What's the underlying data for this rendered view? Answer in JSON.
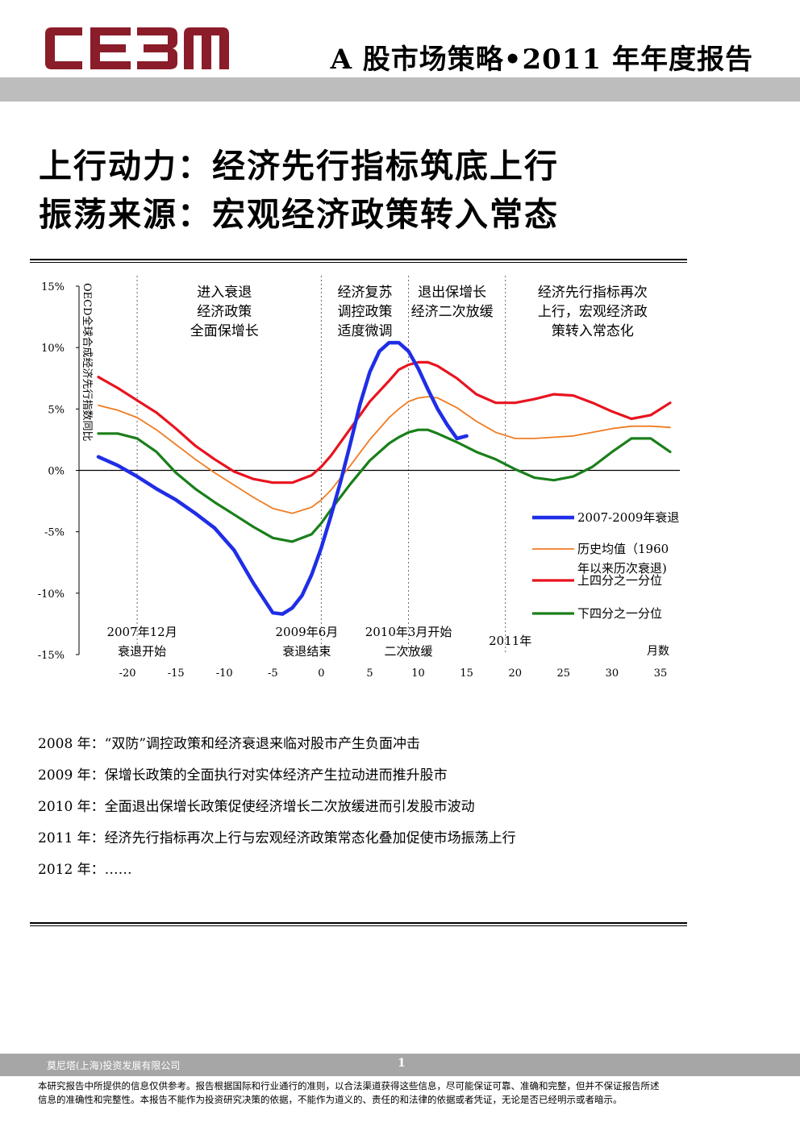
{
  "header": {
    "logo_text": "CE3M",
    "report_title": "A 股市场策略•2011 年年度报告",
    "brand_color": "#8b1c2a"
  },
  "headline": {
    "line1": "上行动力：经济先行指标筑底上行",
    "line2": "振荡来源：宏观经济政策转入常态"
  },
  "chart_data": {
    "type": "line",
    "title": "",
    "ylabel": "OECD全球合成经济先行指数同比",
    "xlabel": "月数",
    "xlim": [
      -25,
      37
    ],
    "ylim": [
      -15,
      15
    ],
    "x_ticks": [
      -20,
      -15,
      -10,
      -5,
      0,
      5,
      10,
      15,
      20,
      25,
      30,
      35
    ],
    "y_ticks": [
      {
        "value": 15,
        "label": "15%"
      },
      {
        "value": 10,
        "label": "10%"
      },
      {
        "value": 5,
        "label": "5%"
      },
      {
        "value": 0,
        "label": "0%"
      },
      {
        "value": -5,
        "label": "-5%"
      },
      {
        "value": -10,
        "label": "-10%"
      },
      {
        "value": -15,
        "label": "-15%"
      }
    ],
    "phase_lines": [
      -19,
      0,
      9,
      19
    ],
    "phase_labels": [
      {
        "x": -10,
        "lines": [
          "进入衰退",
          "经济政策",
          "全面保增长"
        ]
      },
      {
        "x": 4.5,
        "lines": [
          "经济复苏",
          "调控政策",
          "适度微调"
        ]
      },
      {
        "x": 13.5,
        "lines": [
          "退出保增长",
          "经济二次放缓"
        ]
      },
      {
        "x": 28,
        "lines": [
          "经济先行指标再次",
          "上行，宏观经济政",
          "策转入常态化"
        ]
      }
    ],
    "event_labels": [
      {
        "x": -18.5,
        "lines": [
          "2007年12月",
          "衰退开始"
        ]
      },
      {
        "x": -1.5,
        "lines": [
          "2009年6月",
          "衰退结束"
        ]
      },
      {
        "x": 9,
        "lines": [
          "2010年3月开始",
          "二次放缓"
        ]
      },
      {
        "x": 19.5,
        "lines": [
          "2011年"
        ]
      }
    ],
    "series": [
      {
        "name": "2007-2009年衰退",
        "color": "#1f2ee6",
        "width": 4.5,
        "x": [
          -23,
          -21,
          -19,
          -17,
          -15,
          -13,
          -11,
          -9,
          -7,
          -5,
          -4,
          -3,
          -2,
          -1,
          0,
          1,
          2,
          3,
          4,
          5,
          6,
          7,
          8,
          9,
          10,
          11,
          12,
          13,
          14,
          15
        ],
        "y": [
          1.1,
          0.4,
          -0.5,
          -1.5,
          -2.4,
          -3.5,
          -4.7,
          -6.5,
          -9.2,
          -11.6,
          -11.7,
          -11.2,
          -10.2,
          -8.5,
          -6.3,
          -3.7,
          -0.9,
          2.2,
          5.4,
          8.0,
          9.7,
          10.4,
          10.4,
          9.7,
          8.3,
          6.6,
          5.0,
          3.7,
          2.6,
          2.8
        ]
      },
      {
        "name": "历史均值（1960年以来历次衰退)",
        "color": "#f07c22",
        "width": 1.8,
        "x": [
          -23,
          -21,
          -19,
          -17,
          -15,
          -13,
          -11,
          -9,
          -7,
          -5,
          -3,
          -1,
          0,
          1,
          3,
          5,
          7,
          8,
          9,
          10,
          11,
          12,
          14,
          16,
          18,
          20,
          22,
          24,
          26,
          28,
          30,
          32,
          34,
          36
        ],
        "y": [
          5.3,
          4.9,
          4.3,
          3.3,
          2.1,
          0.9,
          -0.2,
          -1.2,
          -2.2,
          -3.1,
          -3.5,
          -3.0,
          -2.4,
          -1.6,
          0.4,
          2.5,
          4.3,
          5.0,
          5.6,
          5.9,
          6.0,
          5.9,
          5.1,
          4.0,
          3.1,
          2.6,
          2.6,
          2.7,
          2.8,
          3.1,
          3.4,
          3.6,
          3.6,
          3.5
        ]
      },
      {
        "name": "上四分之一分位",
        "color": "#e8131f",
        "width": 3.2,
        "x": [
          -23,
          -21,
          -19,
          -17,
          -15,
          -13,
          -11,
          -9,
          -7,
          -5,
          -3,
          -1,
          0,
          1,
          3,
          5,
          7,
          8,
          9,
          10,
          11,
          12,
          14,
          16,
          18,
          20,
          22,
          24,
          26,
          28,
          30,
          32,
          34,
          36
        ],
        "y": [
          7.6,
          6.7,
          5.7,
          4.7,
          3.4,
          2.0,
          0.9,
          -0.1,
          -0.7,
          -1.0,
          -1.0,
          -0.4,
          0.3,
          1.2,
          3.4,
          5.6,
          7.3,
          8.2,
          8.6,
          8.8,
          8.8,
          8.5,
          7.5,
          6.2,
          5.5,
          5.5,
          5.8,
          6.2,
          6.1,
          5.5,
          4.8,
          4.2,
          4.5,
          5.5
        ]
      },
      {
        "name": "下四分之一分位",
        "color": "#1a7f1a",
        "width": 3.2,
        "x": [
          -23,
          -21,
          -19,
          -17,
          -15,
          -13,
          -11,
          -9,
          -7,
          -5,
          -3,
          -1,
          0,
          1,
          3,
          5,
          7,
          8,
          9,
          10,
          11,
          12,
          14,
          16,
          18,
          20,
          22,
          24,
          26,
          28,
          30,
          32,
          34,
          36
        ],
        "y": [
          3.0,
          3.0,
          2.6,
          1.5,
          -0.2,
          -1.5,
          -2.6,
          -3.6,
          -4.6,
          -5.5,
          -5.8,
          -5.2,
          -4.3,
          -3.2,
          -1.1,
          0.8,
          2.2,
          2.7,
          3.1,
          3.3,
          3.3,
          3.0,
          2.3,
          1.5,
          0.9,
          0.1,
          -0.6,
          -0.8,
          -0.5,
          0.3,
          1.5,
          2.6,
          2.6,
          1.5
        ]
      }
    ],
    "legend": {
      "position": "bottom-right",
      "entries": [
        {
          "lines": [
            "2007-2009年衰退"
          ],
          "series": 0
        },
        {
          "lines": [
            "历史均值（1960",
            "年以来历次衰退)"
          ],
          "series": 1
        },
        {
          "lines": [
            "上四分之一分位"
          ],
          "series": 2
        },
        {
          "lines": [
            "下四分之一分位"
          ],
          "series": 3
        }
      ]
    }
  },
  "notes": [
    "2008 年：“双防”调控政策和经济衰退来临对股市产生负面冲击",
    "2009 年：保增长政策的全面执行对实体经济产生拉动进而推升股市",
    "2010 年：全面退出保增长政策促使经济增长二次放缓进而引发股市波动",
    "2011 年：经济先行指标再次上行与宏观经济政策常态化叠加促使市场振荡上行",
    "2012 年：……"
  ],
  "footer": {
    "company": "莫尼塔(上海)投资发展有限公司",
    "page": "1",
    "disclaimer_line1": "本研究报告中所提供的信息仅供参考。报告根据国际和行业通行的准则，以合法渠道获得这些信息，尽可能保证可靠、准确和完整，但并不保证报告所述",
    "disclaimer_line2": "信息的准确性和完整性。本报告不能作为投资研究决策的依据，不能作为道义的、责任的和法律的依据或者凭证，无论是否已经明示或者暗示。"
  }
}
